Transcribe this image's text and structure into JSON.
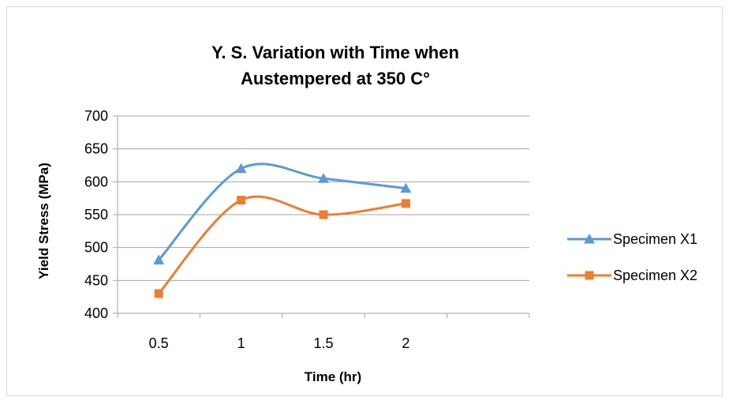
{
  "chart_data": {
    "type": "line",
    "title_line1": "Y. S. Variation with Time when",
    "title_line2": "Austempered at 350  C°",
    "xlabel": "Time  (hr)",
    "ylabel": "Yield Stress  (MPa)",
    "categories": [
      "0.5",
      "1",
      "1.5",
      "2"
    ],
    "x_slots": 5,
    "ylim": [
      400,
      700
    ],
    "yticks": [
      400,
      450,
      500,
      550,
      600,
      650,
      700
    ],
    "grid": true,
    "legend_position": "right",
    "series": [
      {
        "name": "Specimen X1",
        "values": [
          481,
          620,
          605,
          590
        ],
        "color": "#5b9bd5",
        "marker": "triangle"
      },
      {
        "name": "Specimen X2",
        "values": [
          430,
          572,
          550,
          567
        ],
        "color": "#ed7d31",
        "marker": "square"
      }
    ],
    "colors": {
      "grid": "#a6a6a6",
      "axis": "#a6a6a6",
      "frame": "#d9d9d9"
    }
  }
}
